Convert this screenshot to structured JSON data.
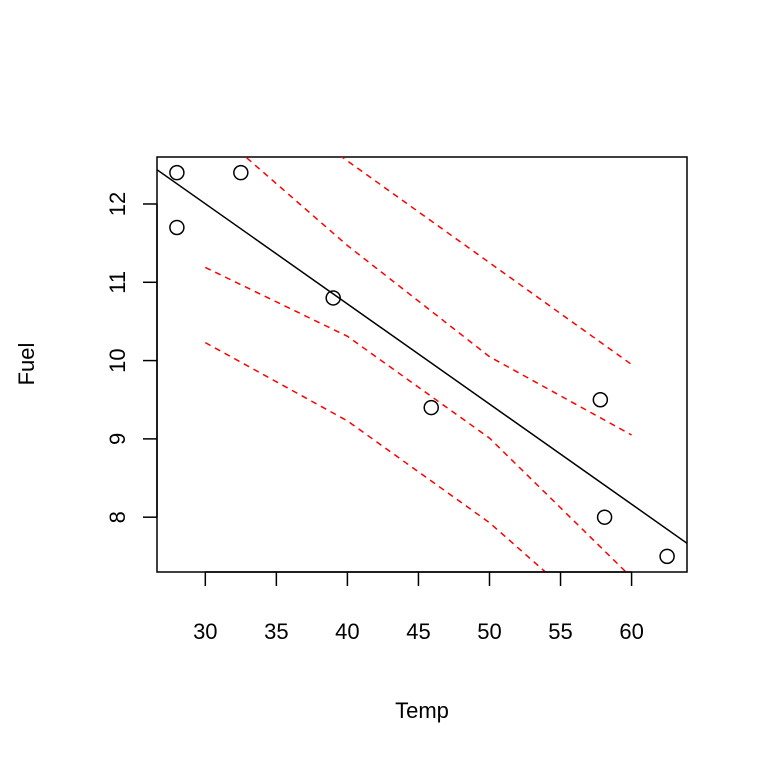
{
  "chart_data": {
    "type": "scatter",
    "xlabel": "Temp",
    "ylabel": "Fuel",
    "xlim": [
      26.6,
      63.9
    ],
    "ylim": [
      7.3,
      12.6
    ],
    "xticks": [
      30,
      35,
      40,
      45,
      50,
      55,
      60
    ],
    "yticks": [
      8,
      9,
      10,
      11,
      12
    ],
    "points": [
      {
        "x": 28.0,
        "y": 12.4
      },
      {
        "x": 28.0,
        "y": 11.7
      },
      {
        "x": 32.5,
        "y": 12.4
      },
      {
        "x": 39.0,
        "y": 10.8
      },
      {
        "x": 45.9,
        "y": 9.4
      },
      {
        "x": 57.8,
        "y": 9.5
      },
      {
        "x": 58.1,
        "y": 8.0
      },
      {
        "x": 62.5,
        "y": 7.5
      }
    ],
    "fit_line": {
      "intercept": 15.84,
      "slope": -0.1279,
      "color": "#000000"
    },
    "band_color": "#ff0000",
    "bands": [
      {
        "name": "upper-prediction",
        "x": [
          30,
          40,
          50,
          60
        ],
        "y": [
          13.85,
          12.55,
          11.25,
          9.95
        ]
      },
      {
        "name": "upper-confidence",
        "x": [
          30,
          40,
          50,
          60
        ],
        "y": [
          13.05,
          11.47,
          10.05,
          9.05
        ]
      },
      {
        "name": "lower-confidence",
        "x": [
          30,
          40,
          50,
          60
        ],
        "y": [
          11.19,
          10.31,
          9.01,
          7.23
        ]
      },
      {
        "name": "lower-prediction",
        "x": [
          30,
          40,
          50,
          60
        ],
        "y": [
          10.23,
          9.23,
          7.93,
          6.33
        ]
      }
    ]
  }
}
